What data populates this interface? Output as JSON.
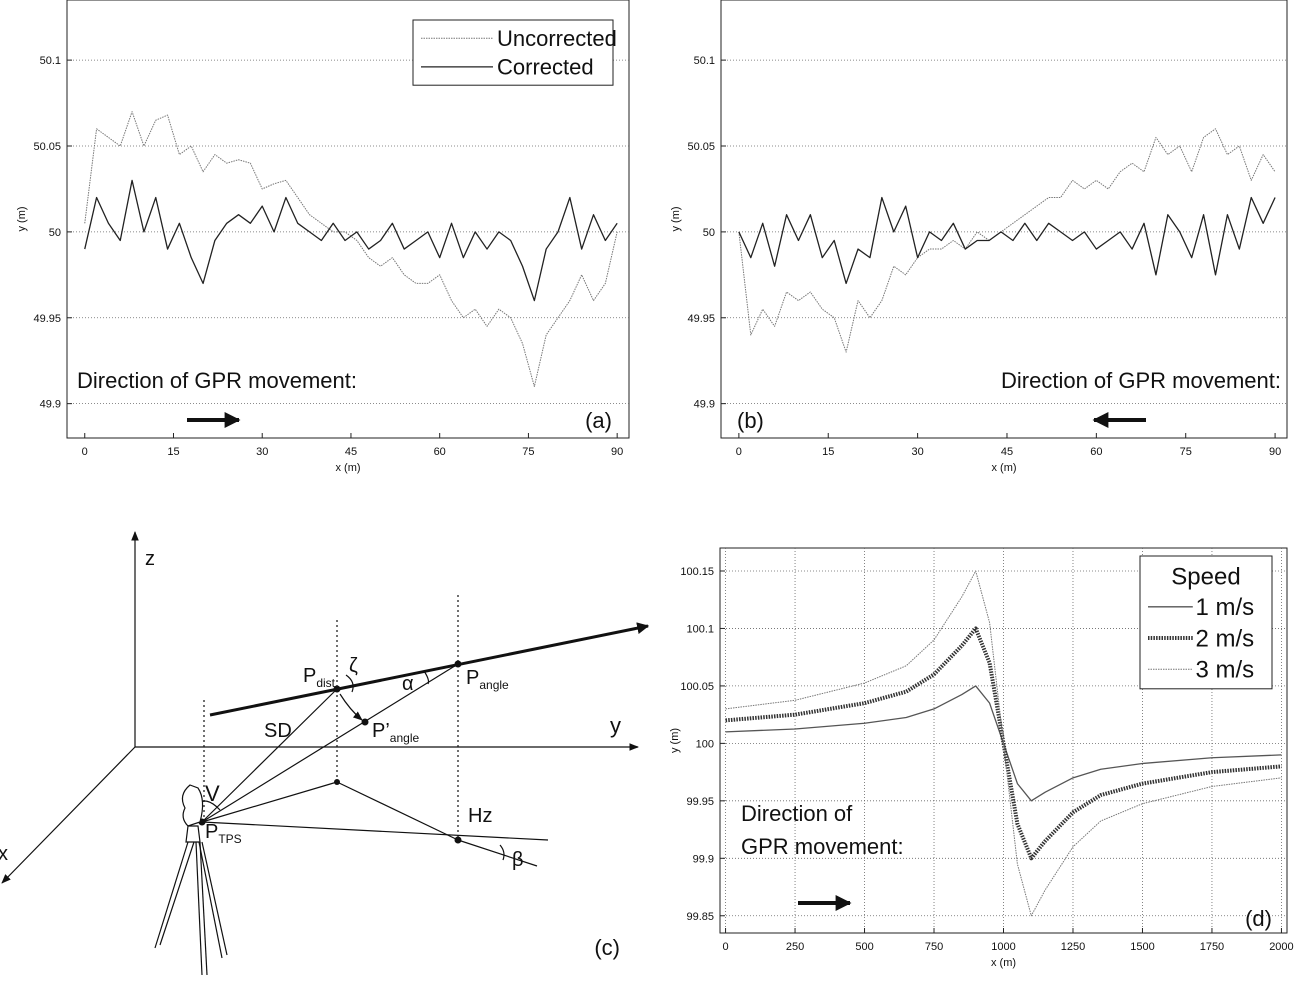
{
  "chart_data": [
    {
      "type": "line",
      "x_label": "x (m)",
      "y_label": "y (m)",
      "annotation": [
        "Direction of GPR movement:"
      ],
      "arrow": "right",
      "panel_label": "(a)",
      "legend": "upper right",
      "grid": "y",
      "xlim": [
        -3,
        92
      ],
      "ylim": [
        49.88,
        50.135
      ],
      "xticks": [
        0,
        15,
        30,
        45,
        60,
        75,
        90
      ],
      "yticks": [
        49.9,
        49.95,
        50,
        50.05,
        50.1
      ],
      "x": [
        0,
        2,
        4,
        6,
        8,
        10,
        12,
        14,
        16,
        18,
        20,
        22,
        24,
        26,
        28,
        30,
        32,
        34,
        36,
        38,
        40,
        42,
        44,
        46,
        48,
        50,
        52,
        54,
        56,
        58,
        60,
        62,
        64,
        66,
        68,
        70,
        72,
        74,
        76,
        78,
        80,
        82,
        84,
        86,
        88,
        90
      ],
      "series": [
        {
          "name": "Uncorrected",
          "color": "#777777",
          "line_style": "dotted",
          "values": [
            50.005,
            50.06,
            50.055,
            50.05,
            50.07,
            50.05,
            50.065,
            50.068,
            50.045,
            50.05,
            50.035,
            50.045,
            50.04,
            50.042,
            50.04,
            50.025,
            50.028,
            50.03,
            50.02,
            50.01,
            50.005,
            50.0,
            50.0,
            49.995,
            49.985,
            49.98,
            49.985,
            49.975,
            49.97,
            49.97,
            49.975,
            49.96,
            49.95,
            49.955,
            49.945,
            49.955,
            49.95,
            49.935,
            49.91,
            49.94,
            49.95,
            49.96,
            49.975,
            49.96,
            49.97,
            50.0
          ]
        },
        {
          "name": "Corrected",
          "color": "#222222",
          "line_style": "solid",
          "values": [
            49.99,
            50.02,
            50.005,
            49.995,
            50.03,
            50.0,
            50.02,
            49.99,
            50.005,
            49.985,
            49.97,
            49.995,
            50.005,
            50.01,
            50.005,
            50.015,
            50.0,
            50.02,
            50.005,
            50.0,
            49.995,
            50.005,
            49.995,
            50.0,
            49.99,
            49.995,
            50.005,
            49.99,
            49.995,
            50.0,
            49.985,
            50.005,
            49.985,
            50.0,
            49.99,
            50.0,
            49.995,
            49.98,
            49.96,
            49.99,
            50.0,
            50.02,
            49.99,
            50.01,
            49.995,
            50.005
          ]
        }
      ]
    },
    {
      "type": "line",
      "x_label": "x (m)",
      "y_label": "y (m)",
      "annotation": [
        "Direction of GPR movement:"
      ],
      "arrow": "left",
      "panel_label": "(b)",
      "grid": "y",
      "xlim": [
        -3,
        92
      ],
      "ylim": [
        49.88,
        50.135
      ],
      "xticks": [
        0,
        15,
        30,
        45,
        60,
        75,
        90
      ],
      "yticks": [
        49.9,
        49.95,
        50,
        50.05,
        50.1
      ],
      "x": [
        0,
        2,
        4,
        6,
        8,
        10,
        12,
        14,
        16,
        18,
        20,
        22,
        24,
        26,
        28,
        30,
        32,
        34,
        36,
        38,
        40,
        42,
        44,
        46,
        48,
        50,
        52,
        54,
        56,
        58,
        60,
        62,
        64,
        66,
        68,
        70,
        72,
        74,
        76,
        78,
        80,
        82,
        84,
        86,
        88,
        90
      ],
      "series": [
        {
          "color": "#777777",
          "line_style": "dotted",
          "values": [
            50.0,
            49.94,
            49.955,
            49.945,
            49.965,
            49.96,
            49.965,
            49.955,
            49.95,
            49.93,
            49.96,
            49.95,
            49.96,
            49.98,
            49.975,
            49.985,
            49.99,
            49.99,
            49.995,
            49.99,
            50.0,
            49.995,
            50.0,
            50.005,
            50.01,
            50.015,
            50.02,
            50.02,
            50.03,
            50.025,
            50.03,
            50.025,
            50.035,
            50.04,
            50.035,
            50.055,
            50.045,
            50.05,
            50.035,
            50.055,
            50.06,
            50.045,
            50.05,
            50.03,
            50.045,
            50.035
          ]
        },
        {
          "color": "#222222",
          "line_style": "solid",
          "values": [
            50.0,
            49.985,
            50.005,
            49.98,
            50.01,
            49.995,
            50.01,
            49.985,
            49.995,
            49.97,
            49.99,
            49.985,
            50.02,
            50.0,
            50.015,
            49.985,
            50.0,
            49.995,
            50.005,
            49.99,
            49.995,
            49.995,
            50.0,
            49.995,
            50.005,
            49.995,
            50.005,
            50.0,
            49.995,
            50.0,
            49.99,
            49.995,
            50.0,
            49.99,
            50.005,
            49.975,
            50.01,
            50.0,
            49.985,
            50.01,
            49.975,
            50.01,
            49.99,
            50.02,
            50.005,
            50.02
          ]
        }
      ]
    },
    {
      "type": "line",
      "x_label": "x (m)",
      "y_label": "y (m)",
      "annotation": [
        "Direction of",
        "GPR movement:"
      ],
      "arrow": "right",
      "panel_label": "(d)",
      "legend": "upper right",
      "legend_title": "Speed",
      "grid": "xy",
      "xlim": [
        -20,
        2020
      ],
      "ylim": [
        99.835,
        100.17
      ],
      "xticks": [
        0,
        250,
        500,
        750,
        1000,
        1250,
        1500,
        1750,
        2000
      ],
      "yticks": [
        99.85,
        99.9,
        99.95,
        100,
        100.05,
        100.1,
        100.15
      ],
      "x": [
        0,
        250,
        500,
        650,
        750,
        850,
        900,
        950,
        1000,
        1050,
        1100,
        1150,
        1250,
        1350,
        1500,
        1750,
        2000
      ],
      "series": [
        {
          "name": "1 m/s",
          "color": "#555555",
          "line_style": "solid",
          "values": [
            100.01,
            100.0125,
            100.0175,
            100.0225,
            100.03,
            100.0425,
            100.05,
            100.035,
            100,
            99.965,
            99.95,
            99.9575,
            99.97,
            99.9775,
            99.9825,
            99.9875,
            99.99
          ]
        },
        {
          "name": "2 m/s",
          "color": "#333333",
          "line_style": "thick-dotted",
          "values": [
            100.02,
            100.025,
            100.035,
            100.045,
            100.06,
            100.085,
            100.1,
            100.07,
            100,
            99.93,
            99.9,
            99.915,
            99.94,
            99.955,
            99.965,
            99.975,
            99.98
          ]
        },
        {
          "name": "3 m/s",
          "color": "#777777",
          "line_style": "dotted",
          "values": [
            100.03,
            100.0375,
            100.0525,
            100.0675,
            100.09,
            100.1275,
            100.15,
            100.105,
            100,
            99.895,
            99.85,
            99.8725,
            99.91,
            99.9325,
            99.9475,
            99.9625,
            99.97
          ]
        }
      ]
    }
  ],
  "diagram": {
    "panel_label": "(c)",
    "labels": [
      {
        "text": "z"
      },
      {
        "text": "y"
      },
      {
        "text": "x"
      },
      {
        "text": "P",
        "sub": "dist"
      },
      {
        "text": "ζ"
      },
      {
        "text": "α"
      },
      {
        "text": "P",
        "sub": "angle"
      },
      {
        "text": "SD"
      },
      {
        "text": "P’",
        "sub": "angle"
      },
      {
        "text": "V"
      },
      {
        "text": "P",
        "sub": "TPS"
      },
      {
        "text": "Hz"
      },
      {
        "text": "β"
      }
    ]
  }
}
